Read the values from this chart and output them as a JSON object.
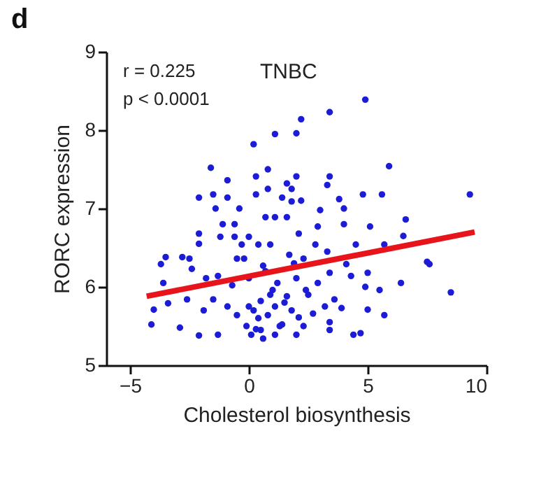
{
  "chart_data": {
    "type": "scatter",
    "title": "d",
    "xlabel": "Cholesterol biosynthesis",
    "ylabel": "RORC expression",
    "annotations": [
      "r = 0.225",
      "p < 0.0001",
      "TNBC"
    ],
    "xlim": [
      -6,
      10
    ],
    "ylim": [
      5,
      9
    ],
    "xticks": [
      -5,
      0,
      5,
      10
    ],
    "yticks": [
      5,
      6,
      7,
      8,
      9
    ],
    "grid": false,
    "marker": "circle",
    "series": [
      {
        "color": "#1c1cd6",
        "x": [
          1.1,
          0.2,
          -1.6,
          -0.9,
          -2.1,
          -1.5,
          -0.9,
          0.3,
          0.8,
          0.3,
          0.8,
          4.9,
          3.4,
          2.2,
          2.0,
          5.9,
          2.0,
          3.4,
          3.3,
          1.6,
          1.8,
          1.4,
          2.2,
          3.8,
          4.8,
          5.6,
          9.3,
          3.0,
          6.6,
          5.1,
          6.5,
          7.5,
          7.6,
          6.4,
          8.5,
          5.5,
          5.0,
          5.7,
          4.4,
          4.7,
          3.4,
          2.3,
          4.0,
          4.5,
          5.7,
          4.9,
          5.0,
          3.6,
          3.9,
          3.4,
          2.9,
          4.1,
          2.9,
          2.1,
          2.8,
          -4.1,
          -4.0,
          -3.6,
          -3.5,
          -3.7,
          -2.9,
          -3.4,
          -2.8,
          -2.5,
          -2.4,
          -2.6,
          -2.1,
          -2.1,
          -2.1,
          -1.8,
          -1.9,
          -1.3,
          -1.4,
          -1.1,
          -1.2,
          -1.3,
          -1.5,
          -0.9,
          -0.4,
          -0.6,
          -0.6,
          -0.5,
          -0.3,
          -0.7,
          -0.5,
          0.1,
          0.3,
          0.6,
          0.8,
          0.5,
          0.6,
          1.0,
          1.1,
          0.7,
          0.0,
          0.4,
          0.0,
          0.0,
          1.4,
          0.9,
          -0.2,
          1.2,
          1.6,
          1.8,
          2.1,
          2.7,
          2.4,
          1.1,
          1.7,
          2.3,
          3.3,
          1.6,
          1.8,
          4.0,
          3.4,
          2.0,
          4.3,
          3.2,
          1.1,
          2.0,
          0.4,
          0.9,
          1.3,
          0.2,
          -0.1,
          0.7,
          1.5,
          2.5,
          0.5,
          1.9
        ],
        "values": [
          7.95,
          7.82,
          7.52,
          7.36,
          7.14,
          7.18,
          7.14,
          7.41,
          7.5,
          7.18,
          7.25,
          8.39,
          8.23,
          8.14,
          7.96,
          7.54,
          7.41,
          7.41,
          7.3,
          7.32,
          7.25,
          7.14,
          7.1,
          7.12,
          7.18,
          7.18,
          7.18,
          6.98,
          6.86,
          6.77,
          6.65,
          6.32,
          6.29,
          6.05,
          5.93,
          5.96,
          5.71,
          5.64,
          5.39,
          5.41,
          5.45,
          5.5,
          6.8,
          6.54,
          6.54,
          6.0,
          6.18,
          5.84,
          5.73,
          5.55,
          6.05,
          6.29,
          6.77,
          6.68,
          6.54,
          5.52,
          5.71,
          6.05,
          6.38,
          6.29,
          5.48,
          5.79,
          6.38,
          6.36,
          6.23,
          5.84,
          6.68,
          6.55,
          5.38,
          6.11,
          5.7,
          5.39,
          7.0,
          6.8,
          6.64,
          6.14,
          5.84,
          5.75,
          7.0,
          6.8,
          6.64,
          6.36,
          6.54,
          6.02,
          5.64,
          5.39,
          5.46,
          5.34,
          5.64,
          5.82,
          6.27,
          5.96,
          6.89,
          6.89,
          6.64,
          6.54,
          6.11,
          5.75,
          5.52,
          6.54,
          6.36,
          6.05,
          5.88,
          5.7,
          5.61,
          5.66,
          5.96,
          5.39,
          6.41,
          6.36,
          6.45,
          6.89,
          7.09,
          7.0,
          6.18,
          6.11,
          6.14,
          5.75,
          5.75,
          5.39,
          5.6,
          5.9,
          5.5,
          5.7,
          5.5,
          6.2,
          5.8,
          5.9,
          5.45,
          6.3
        ]
      },
      {
        "type": "line",
        "marker": "none",
        "color": "#e8141c",
        "x": [
          -4.3,
          9.5
        ],
        "values": [
          5.88,
          6.7
        ]
      }
    ]
  }
}
